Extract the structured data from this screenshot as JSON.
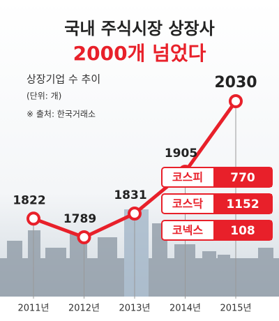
{
  "chart_data": {
    "type": "line",
    "title": "국내 주식시장 상장사",
    "subtitle": "2000개 넘었다",
    "annotations": [
      "상장기업 수 추이",
      "(단위: 개)",
      "※ 출처: 한국거래소"
    ],
    "categories": [
      "2011년",
      "2012년",
      "2013년",
      "2014년",
      "2015년"
    ],
    "values": [
      1822,
      1789,
      1831,
      1905,
      2030
    ],
    "color": "#e8202a",
    "breakdown": {
      "categories": [
        "코스피",
        "코스닥",
        "코넥스"
      ],
      "values": [
        770,
        1152,
        108
      ]
    }
  }
}
